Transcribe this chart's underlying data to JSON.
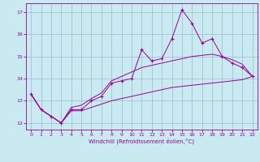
{
  "xlabel": "Windchill (Refroidissement éolien,°C)",
  "bg_color": "#c8eaf0",
  "grid_color": "#a0b8cc",
  "line_color": "#990099",
  "x_data": [
    0,
    1,
    2,
    3,
    4,
    5,
    6,
    7,
    8,
    9,
    10,
    11,
    12,
    13,
    14,
    15,
    16,
    17,
    18,
    19,
    20,
    21,
    22
  ],
  "y_main": [
    13.3,
    12.6,
    12.3,
    12.0,
    12.6,
    12.6,
    13.0,
    13.2,
    13.8,
    13.9,
    14.0,
    15.3,
    14.8,
    14.9,
    15.8,
    17.1,
    16.5,
    15.6,
    15.8,
    15.0,
    14.7,
    14.5,
    14.1
  ],
  "y_low": [
    13.3,
    12.6,
    12.3,
    12.0,
    12.55,
    12.55,
    12.7,
    12.85,
    13.0,
    13.1,
    13.2,
    13.3,
    13.4,
    13.5,
    13.6,
    13.65,
    13.7,
    13.75,
    13.8,
    13.85,
    13.9,
    13.95,
    14.1
  ],
  "y_high": [
    13.3,
    12.6,
    12.3,
    12.0,
    12.7,
    12.8,
    13.1,
    13.35,
    13.9,
    14.1,
    14.3,
    14.5,
    14.6,
    14.7,
    14.8,
    14.9,
    15.0,
    15.05,
    15.1,
    15.0,
    14.85,
    14.65,
    14.1
  ],
  "xlim": [
    -0.5,
    22.5
  ],
  "ylim": [
    11.7,
    17.4
  ],
  "yticks": [
    12,
    13,
    14,
    15,
    16,
    17
  ],
  "xticks": [
    0,
    1,
    2,
    3,
    4,
    5,
    6,
    7,
    8,
    9,
    10,
    11,
    12,
    13,
    14,
    15,
    16,
    17,
    18,
    19,
    20,
    21,
    22
  ]
}
